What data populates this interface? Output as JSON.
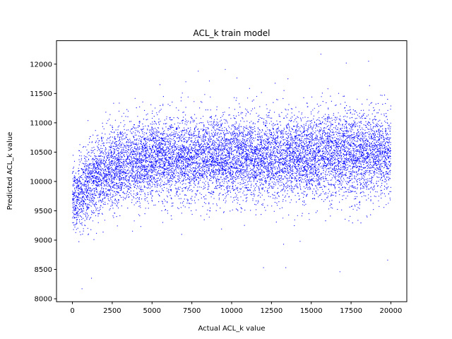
{
  "chart_data": {
    "type": "scatter",
    "title": "ACL_k train model",
    "xlabel": "Actual ACL_k value",
    "ylabel": "Predicted ACL_k value",
    "xlim": [
      -1000,
      21000
    ],
    "ylim": [
      7950,
      12400
    ],
    "xticks": [
      0,
      2500,
      5000,
      7500,
      10000,
      12500,
      15000,
      17500,
      20000
    ],
    "yticks": [
      8000,
      8500,
      9000,
      9500,
      10000,
      10500,
      11000,
      11500,
      12000
    ],
    "grid": false,
    "legend": "none",
    "marker_color": "#0000ff",
    "series": [
      {
        "density_profile": [
          {
            "x": 0,
            "y_center": 9700,
            "y_spread": 260
          },
          {
            "x": 500,
            "y_center": 9800,
            "y_spread": 300
          },
          {
            "x": 1000,
            "y_center": 9950,
            "y_spread": 320
          },
          {
            "x": 2000,
            "y_center": 10150,
            "y_spread": 330
          },
          {
            "x": 3000,
            "y_center": 10280,
            "y_spread": 340
          },
          {
            "x": 5000,
            "y_center": 10380,
            "y_spread": 340
          },
          {
            "x": 7500,
            "y_center": 10420,
            "y_spread": 340
          },
          {
            "x": 10000,
            "y_center": 10420,
            "y_spread": 350
          },
          {
            "x": 12500,
            "y_center": 10400,
            "y_spread": 350
          },
          {
            "x": 15000,
            "y_center": 10430,
            "y_spread": 360
          },
          {
            "x": 17500,
            "y_center": 10450,
            "y_spread": 360
          },
          {
            "x": 20000,
            "y_center": 10480,
            "y_spread": 360
          }
        ],
        "x_range": [
          0,
          20000
        ],
        "y_range": [
          8150,
          12170
        ],
        "outliers": [
          {
            "x": 600,
            "y": 8170
          },
          {
            "x": 1200,
            "y": 8350
          },
          {
            "x": 2100,
            "y": 11180
          },
          {
            "x": 5500,
            "y": 11650
          },
          {
            "x": 7900,
            "y": 11880
          },
          {
            "x": 9600,
            "y": 11910
          },
          {
            "x": 12000,
            "y": 8530
          },
          {
            "x": 13400,
            "y": 8530
          },
          {
            "x": 15600,
            "y": 12170
          },
          {
            "x": 16800,
            "y": 8460
          },
          {
            "x": 17200,
            "y": 12020
          },
          {
            "x": 18600,
            "y": 12050
          },
          {
            "x": 19800,
            "y": 8660
          }
        ]
      }
    ]
  }
}
